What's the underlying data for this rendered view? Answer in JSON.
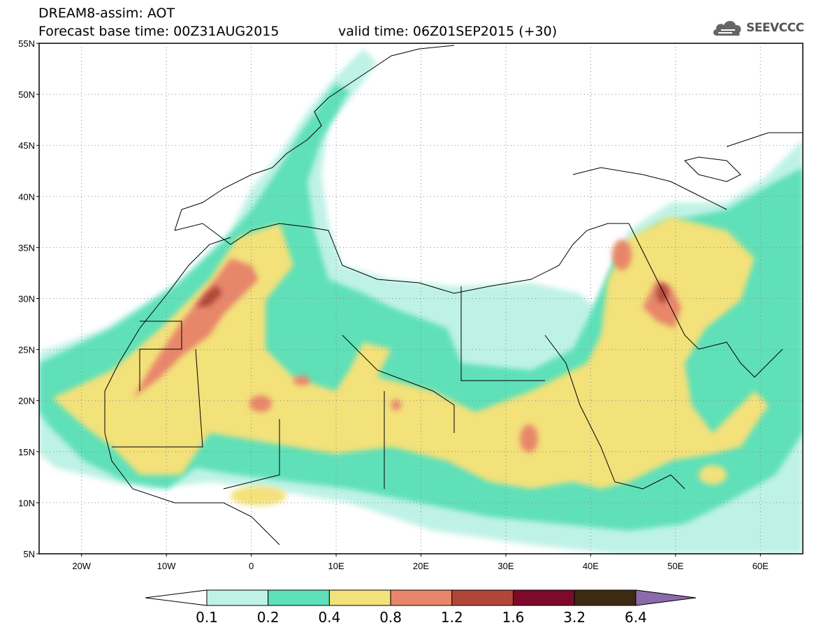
{
  "title_line1": "DREAM8-assim: AOT",
  "title_line2": "Forecast base time: 00Z31AUG2015",
  "title_valid": "valid time: 06Z01SEP2015 (+30)",
  "logo": "SEEVCCC",
  "logo_icon": "cloud-icon",
  "map": {
    "lon_range": [
      -25,
      65
    ],
    "lat_range": [
      5,
      55
    ],
    "lat_ticks": [
      "5N",
      "10N",
      "15N",
      "20N",
      "25N",
      "30N",
      "35N",
      "40N",
      "45N",
      "50N",
      "55N"
    ],
    "lon_ticks": [
      "20W",
      "10W",
      "0",
      "10E",
      "20E",
      "30E",
      "40E",
      "50E",
      "60E"
    ],
    "grid": "dotted"
  },
  "colorbar": {
    "labels": [
      "0.1",
      "0.2",
      "0.4",
      "0.8",
      "1.2",
      "1.6",
      "3.2",
      "6.4"
    ],
    "colors": [
      "#ffffff",
      "#bff2e6",
      "#5ee0b8",
      "#f3e17a",
      "#e8866a",
      "#b04638",
      "#7c0a28",
      "#3e2a12",
      "#8c6aaa"
    ]
  },
  "levels_colors": {
    "l1": "#bff2e6",
    "l2": "#5ee0b8",
    "l3": "#f3e17a",
    "l4": "#e8866a",
    "l5": "#b04638"
  }
}
